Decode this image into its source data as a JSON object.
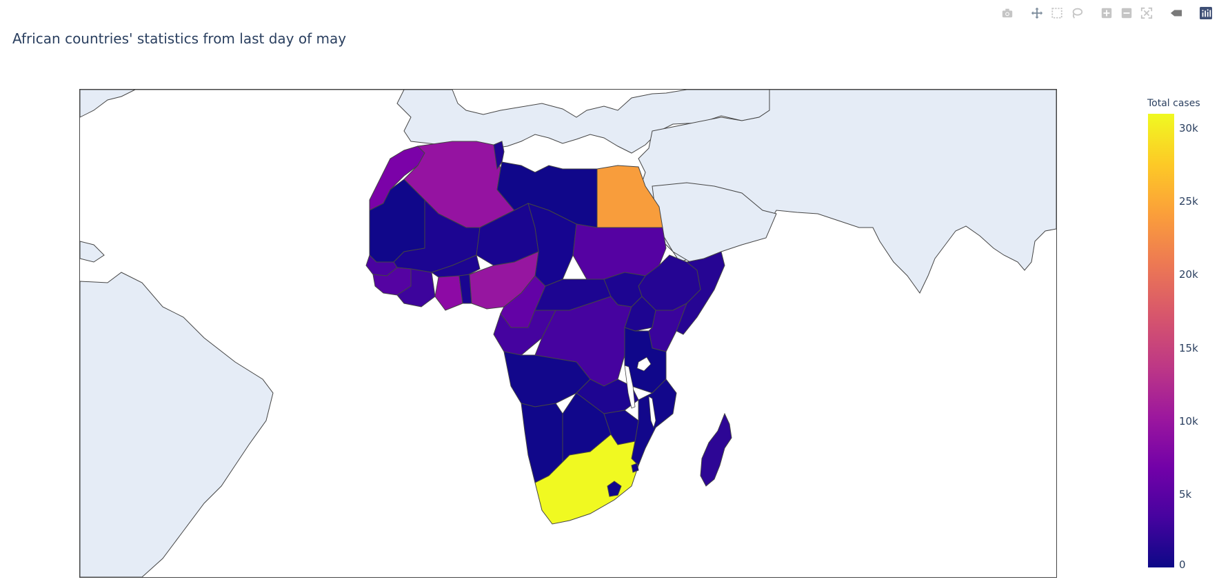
{
  "title": "African countries' statistics from last day of may",
  "modebar": {
    "icons": [
      "camera-icon",
      "pan-icon",
      "box-select-icon",
      "lasso-icon",
      "zoom-in-icon",
      "zoom-out-icon",
      "reset-icon",
      "hover-icon",
      "plotly-logo-icon"
    ]
  },
  "colorbar": {
    "title": "Total cases",
    "ticks": [
      {
        "label": "0",
        "value": 0
      },
      {
        "label": "5k",
        "value": 5000
      },
      {
        "label": "10k",
        "value": 10000
      },
      {
        "label": "15k",
        "value": 15000
      },
      {
        "label": "20k",
        "value": 20000
      },
      {
        "label": "25k",
        "value": 25000
      },
      {
        "label": "30k",
        "value": 30000
      }
    ],
    "range": [
      0,
      31000
    ],
    "colorscale": "plasma"
  },
  "colors": {
    "land": "#e5ecf6",
    "ocean": "#ffffff",
    "border": "#444444",
    "title": "#2a3f5f"
  },
  "chart_data": {
    "type": "choropleth",
    "scope": "africa",
    "metric": "Total cases",
    "regions": [
      {
        "name": "South Africa",
        "value": 30967
      },
      {
        "name": "Egypt",
        "value": 24985
      },
      {
        "name": "Algeria",
        "value": 9394
      },
      {
        "name": "Nigeria",
        "value": 10162
      },
      {
        "name": "Morocco",
        "value": 7780
      },
      {
        "name": "Ghana",
        "value": 7881
      },
      {
        "name": "Cameroon",
        "value": 5904
      },
      {
        "name": "Sudan",
        "value": 5026
      },
      {
        "name": "Guinea",
        "value": 3886
      },
      {
        "name": "Senegal",
        "value": 3739
      },
      {
        "name": "Ivory Coast",
        "value": 2799
      },
      {
        "name": "DR Congo",
        "value": 3046
      },
      {
        "name": "Gabon",
        "value": 2803
      },
      {
        "name": "Djibouti",
        "value": 3354
      },
      {
        "name": "Kenya",
        "value": 1962
      },
      {
        "name": "Somalia",
        "value": 2023
      },
      {
        "name": "Mauritania",
        "value": 530
      },
      {
        "name": "Mali",
        "value": 1265
      },
      {
        "name": "Niger",
        "value": 958
      },
      {
        "name": "Chad",
        "value": 778
      },
      {
        "name": "Libya",
        "value": 118
      },
      {
        "name": "Tunisia",
        "value": 1076
      },
      {
        "name": "Ethiopia",
        "value": 1172
      },
      {
        "name": "Tanzania",
        "value": 509
      },
      {
        "name": "Zambia",
        "value": 1057
      },
      {
        "name": "Angola",
        "value": 86
      },
      {
        "name": "Namibia",
        "value": 23
      },
      {
        "name": "Botswana",
        "value": 35
      },
      {
        "name": "Zimbabwe",
        "value": 178
      },
      {
        "name": "Mozambique",
        "value": 254
      },
      {
        "name": "Madagascar",
        "value": 771
      },
      {
        "name": "Central African Republic",
        "value": 1011
      },
      {
        "name": "South Sudan",
        "value": 994
      },
      {
        "name": "Uganda",
        "value": 417
      },
      {
        "name": "Burkina Faso",
        "value": 881
      }
    ]
  }
}
